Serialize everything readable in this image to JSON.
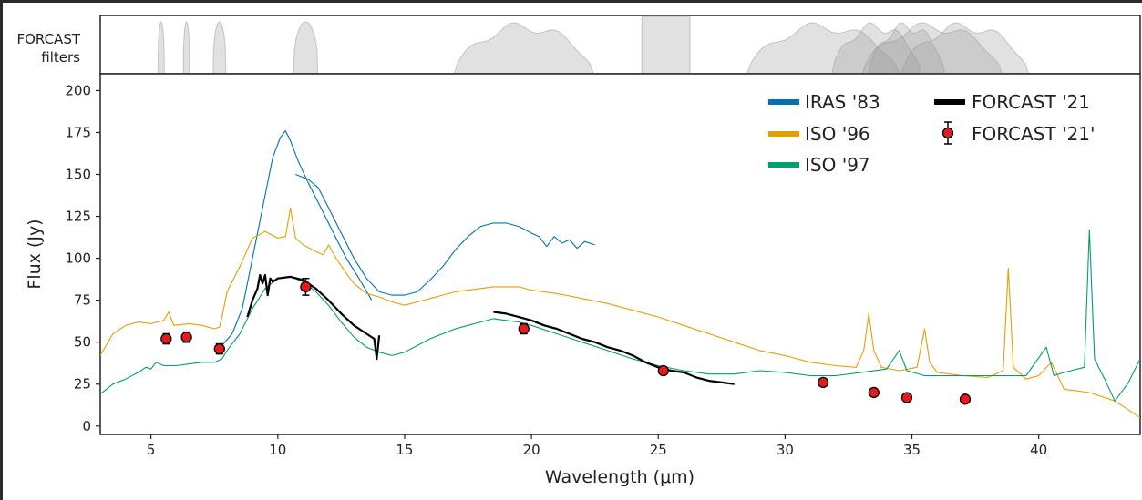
{
  "chart_data": {
    "type": "line",
    "xlabel": "Wavelength (μm)",
    "ylabel": "Flux (Jy)",
    "xlim": [
      3,
      44
    ],
    "ylim": [
      -5,
      210
    ],
    "xticks": [
      5,
      10,
      15,
      20,
      25,
      30,
      35,
      40
    ],
    "yticks": [
      0,
      25,
      50,
      75,
      100,
      125,
      150,
      175,
      200
    ],
    "grid": false,
    "legend_position": "top-right",
    "filter_panel": {
      "label_lines": [
        "FORCAST",
        "filters"
      ],
      "filters": [
        {
          "center": 5.4,
          "width": 0.25,
          "shape": "narrow"
        },
        {
          "center": 6.4,
          "width": 0.25,
          "shape": "narrow"
        },
        {
          "center": 7.7,
          "width": 0.5,
          "shape": "narrow"
        },
        {
          "center": 11.1,
          "width": 0.95,
          "shape": "narrow"
        },
        {
          "center": 19.7,
          "width": 5.5,
          "shape": "wide"
        },
        {
          "center": 25.3,
          "width": 1.9,
          "shape": "box"
        },
        {
          "center": 31.5,
          "width": 6.0,
          "shape": "wide"
        },
        {
          "center": 33.6,
          "width": 3.5,
          "shape": "wide"
        },
        {
          "center": 34.8,
          "width": 3.0,
          "shape": "wide"
        },
        {
          "center": 35.8,
          "width": 5.5,
          "shape": "wide"
        },
        {
          "center": 37.1,
          "width": 5.0,
          "shape": "wide"
        }
      ]
    },
    "series": [
      {
        "name": "IRAS '83",
        "color": "#0072b2",
        "style": "thin-line",
        "segments": [
          [
            [
              7.8,
              48
            ],
            [
              8.2,
              55
            ],
            [
              8.6,
              70
            ],
            [
              9.0,
              100
            ],
            [
              9.4,
              130
            ],
            [
              9.8,
              160
            ],
            [
              10.1,
              172
            ],
            [
              10.3,
              176
            ],
            [
              10.5,
              170
            ],
            [
              10.8,
              158
            ],
            [
              11.2,
              145
            ],
            [
              11.7,
              130
            ],
            [
              12.2,
              115
            ],
            [
              12.7,
              100
            ],
            [
              13.2,
              88
            ],
            [
              13.7,
              75
            ]
          ],
          [
            [
              10.7,
              150
            ],
            [
              11.2,
              147
            ],
            [
              11.6,
              142
            ],
            [
              12.0,
              130
            ],
            [
              12.5,
              115
            ],
            [
              13.0,
              100
            ],
            [
              13.5,
              88
            ],
            [
              14.0,
              80
            ],
            [
              14.5,
              78
            ],
            [
              15.0,
              78
            ],
            [
              15.5,
              80
            ],
            [
              16.0,
              87
            ],
            [
              16.5,
              95
            ],
            [
              17.0,
              105
            ],
            [
              17.5,
              113
            ],
            [
              18.0,
              119
            ],
            [
              18.5,
              121
            ],
            [
              19.0,
              121
            ],
            [
              19.5,
              119
            ],
            [
              20.0,
              115
            ],
            [
              20.3,
              113
            ],
            [
              20.6,
              107
            ],
            [
              20.9,
              113
            ],
            [
              21.2,
              109
            ],
            [
              21.5,
              111
            ],
            [
              21.8,
              106
            ],
            [
              22.1,
              110
            ],
            [
              22.5,
              108
            ]
          ]
        ]
      },
      {
        "name": "ISO '96",
        "color": "#e69f00",
        "style": "thin-line",
        "segments": [
          [
            [
              3.0,
              42
            ],
            [
              3.5,
              55
            ],
            [
              4.0,
              60
            ],
            [
              4.5,
              62
            ],
            [
              5.0,
              61
            ],
            [
              5.5,
              63
            ],
            [
              5.7,
              68
            ],
            [
              5.9,
              60
            ],
            [
              6.5,
              61
            ],
            [
              7.0,
              60
            ],
            [
              7.5,
              58
            ],
            [
              7.7,
              59
            ],
            [
              7.8,
              65
            ],
            [
              8.0,
              80
            ],
            [
              8.5,
              95
            ],
            [
              9.0,
              112
            ],
            [
              9.5,
              116
            ],
            [
              10.0,
              112
            ],
            [
              10.3,
              113
            ],
            [
              10.5,
              130
            ],
            [
              10.7,
              112
            ],
            [
              11.0,
              108
            ],
            [
              11.5,
              104
            ],
            [
              11.8,
              102
            ],
            [
              12.0,
              108
            ],
            [
              12.3,
              100
            ],
            [
              12.7,
              91
            ],
            [
              13.0,
              85
            ],
            [
              13.5,
              79
            ],
            [
              14.0,
              77
            ],
            [
              14.5,
              74
            ],
            [
              15.0,
              72
            ],
            [
              15.5,
              74
            ],
            [
              16.0,
              76
            ],
            [
              16.5,
              78
            ],
            [
              17.0,
              80
            ],
            [
              17.5,
              81
            ],
            [
              18.0,
              82
            ],
            [
              18.5,
              83
            ],
            [
              19.0,
              83
            ],
            [
              19.5,
              83
            ],
            [
              20.0,
              81
            ],
            [
              21.0,
              79
            ],
            [
              22.0,
              76
            ],
            [
              23.0,
              73
            ],
            [
              24.0,
              69
            ],
            [
              25.0,
              65
            ],
            [
              26.0,
              60
            ],
            [
              27.0,
              55
            ],
            [
              28.0,
              50
            ],
            [
              29.0,
              45
            ],
            [
              30.0,
              42
            ],
            [
              31.0,
              38
            ],
            [
              32.0,
              36
            ],
            [
              32.8,
              35
            ],
            [
              33.1,
              45
            ],
            [
              33.3,
              67
            ],
            [
              33.5,
              45
            ],
            [
              33.8,
              35
            ],
            [
              34.5,
              33
            ],
            [
              35.2,
              35
            ],
            [
              35.5,
              58
            ],
            [
              35.7,
              38
            ],
            [
              36.0,
              32
            ],
            [
              37.0,
              30
            ],
            [
              38.0,
              29
            ],
            [
              38.6,
              33
            ],
            [
              38.8,
              94
            ],
            [
              39.0,
              35
            ],
            [
              39.5,
              28
            ],
            [
              40.0,
              30
            ],
            [
              40.5,
              38
            ],
            [
              41.0,
              22
            ],
            [
              42.0,
              20
            ],
            [
              43.0,
              15
            ],
            [
              44.0,
              5
            ]
          ]
        ]
      },
      {
        "name": "ISO '97",
        "color": "#009e73",
        "style": "thin-line",
        "segments": [
          [
            [
              3.0,
              19
            ],
            [
              3.5,
              25
            ],
            [
              4.0,
              28
            ],
            [
              4.5,
              32
            ],
            [
              4.8,
              35
            ],
            [
              5.0,
              34
            ],
            [
              5.2,
              38
            ],
            [
              5.5,
              36
            ],
            [
              6.0,
              36
            ],
            [
              6.5,
              37
            ],
            [
              7.0,
              38
            ],
            [
              7.5,
              38
            ],
            [
              7.8,
              40
            ],
            [
              8.0,
              45
            ],
            [
              8.5,
              55
            ],
            [
              9.0,
              70
            ],
            [
              9.5,
              82
            ],
            [
              10.0,
              88
            ],
            [
              10.5,
              89
            ],
            [
              11.0,
              86
            ],
            [
              11.5,
              80
            ],
            [
              12.0,
              72
            ],
            [
              12.5,
              62
            ],
            [
              13.0,
              53
            ],
            [
              13.5,
              47
            ],
            [
              14.0,
              44
            ],
            [
              14.5,
              42
            ],
            [
              15.0,
              44
            ],
            [
              15.5,
              48
            ],
            [
              16.0,
              52
            ],
            [
              16.5,
              55
            ],
            [
              17.0,
              58
            ],
            [
              17.5,
              60
            ],
            [
              18.0,
              62
            ],
            [
              18.5,
              64
            ],
            [
              19.0,
              63
            ],
            [
              19.5,
              62
            ],
            [
              20.0,
              60
            ],
            [
              21.0,
              55
            ],
            [
              22.0,
              50
            ],
            [
              23.0,
              45
            ],
            [
              24.0,
              40
            ],
            [
              25.0,
              36
            ],
            [
              26.0,
              33
            ],
            [
              27.0,
              31
            ],
            [
              28.0,
              31
            ],
            [
              29.0,
              33
            ],
            [
              30.0,
              32
            ],
            [
              31.0,
              30
            ],
            [
              32.0,
              30
            ],
            [
              33.0,
              32
            ],
            [
              34.0,
              34
            ],
            [
              34.5,
              45
            ],
            [
              34.8,
              33
            ],
            [
              35.5,
              30
            ],
            [
              36.5,
              30
            ],
            [
              37.5,
              30
            ],
            [
              38.5,
              30
            ],
            [
              39.5,
              30
            ],
            [
              40.3,
              47
            ],
            [
              40.6,
              30
            ],
            [
              41.0,
              32
            ],
            [
              41.8,
              35
            ],
            [
              42.0,
              117
            ],
            [
              42.2,
              40
            ],
            [
              42.6,
              28
            ],
            [
              43.0,
              15
            ],
            [
              43.5,
              25
            ],
            [
              44.0,
              40
            ]
          ]
        ]
      },
      {
        "name": "FORCAST '21",
        "color": "#000000",
        "style": "thick-line",
        "segments": [
          [
            [
              8.8,
              65
            ],
            [
              9.0,
              75
            ],
            [
              9.2,
              82
            ],
            [
              9.3,
              90
            ],
            [
              9.4,
              85
            ],
            [
              9.5,
              90
            ],
            [
              9.6,
              78
            ],
            [
              9.7,
              88
            ],
            [
              9.8,
              86
            ],
            [
              10.0,
              88
            ],
            [
              10.5,
              89
            ],
            [
              11.0,
              87
            ],
            [
              11.5,
              82
            ],
            [
              12.0,
              75
            ],
            [
              12.5,
              67
            ],
            [
              13.0,
              60
            ],
            [
              13.5,
              55
            ],
            [
              13.8,
              52
            ],
            [
              13.9,
              40
            ],
            [
              14.0,
              54
            ]
          ],
          [
            [
              18.5,
              68
            ],
            [
              19.0,
              67
            ],
            [
              19.5,
              65
            ],
            [
              20.0,
              63
            ],
            [
              20.5,
              60
            ],
            [
              21.0,
              58
            ],
            [
              21.5,
              55
            ],
            [
              22.0,
              52
            ],
            [
              22.5,
              50
            ],
            [
              23.0,
              47
            ],
            [
              23.5,
              45
            ],
            [
              24.0,
              42
            ],
            [
              24.5,
              38
            ],
            [
              25.0,
              35
            ],
            [
              25.5,
              33
            ],
            [
              26.0,
              32
            ],
            [
              26.5,
              29
            ],
            [
              27.0,
              27
            ],
            [
              27.5,
              26
            ],
            [
              28.0,
              25
            ]
          ]
        ]
      },
      {
        "name": "FORCAST '21'",
        "color": "#e41a1c",
        "style": "points-with-errorbars",
        "points": [
          {
            "x": 5.6,
            "y": 52,
            "err": 3
          },
          {
            "x": 6.4,
            "y": 53,
            "err": 3
          },
          {
            "x": 7.7,
            "y": 46,
            "err": 3
          },
          {
            "x": 11.1,
            "y": 83,
            "err": 5
          },
          {
            "x": 19.7,
            "y": 58,
            "err": 3
          },
          {
            "x": 25.2,
            "y": 33,
            "err": 2
          },
          {
            "x": 31.5,
            "y": 26,
            "err": 1
          },
          {
            "x": 33.5,
            "y": 20,
            "err": 1
          },
          {
            "x": 34.8,
            "y": 17,
            "err": 1
          },
          {
            "x": 37.1,
            "y": 16,
            "err": 1
          }
        ]
      }
    ]
  }
}
